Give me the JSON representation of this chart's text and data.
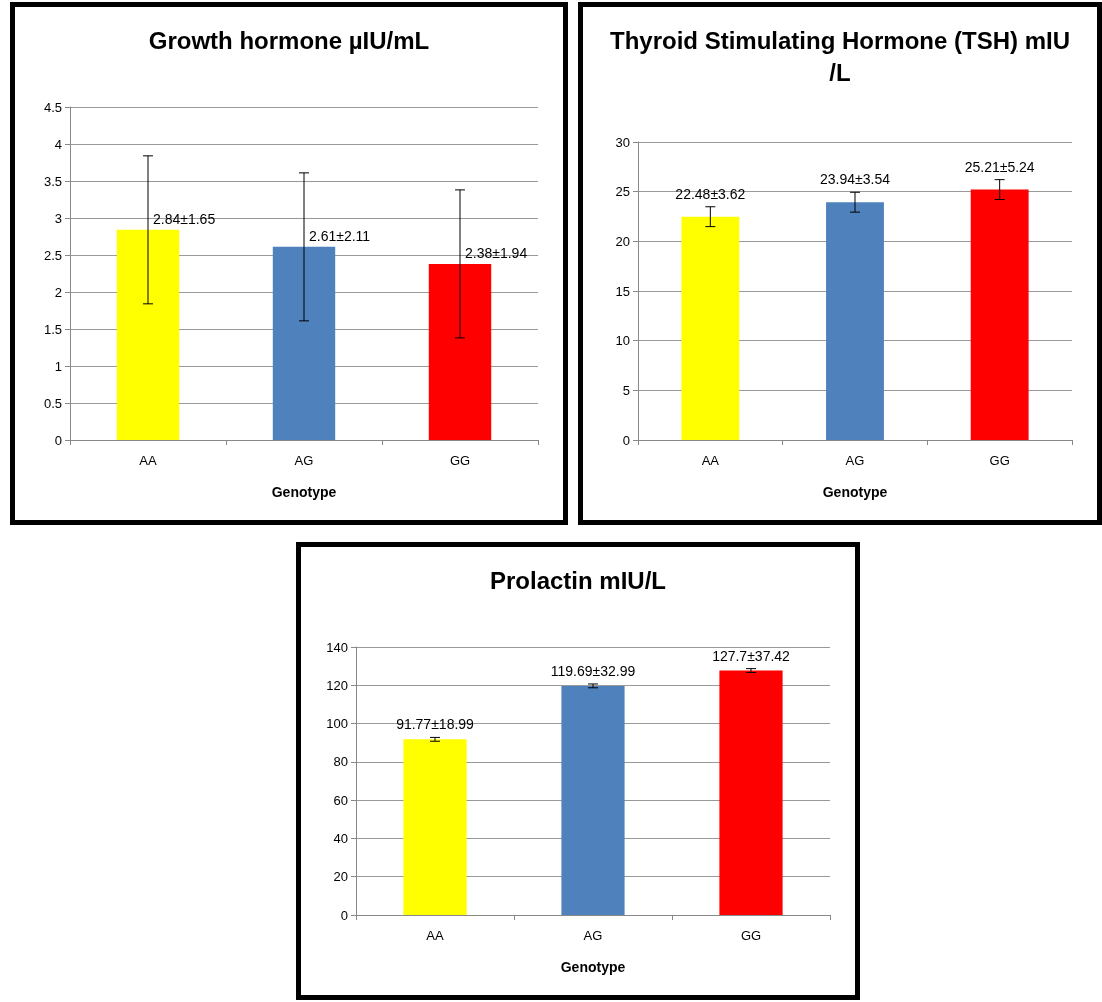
{
  "chart_data": [
    {
      "type": "bar",
      "title": "Growth hormone µIU/mL",
      "xlabel": "Genotype",
      "categories": [
        "AA",
        "AG",
        "GG"
      ],
      "values": [
        2.84,
        2.61,
        2.38
      ],
      "colors": [
        "#ffff00",
        "#4f81bd",
        "#ff0000"
      ],
      "errors": [
        1.0,
        1.0,
        1.0
      ],
      "value_labels": [
        "2.84±1.65",
        "2.61±2.11",
        "2.38±1.94"
      ],
      "ylim": [
        0,
        4.5
      ],
      "yticks": [
        0,
        0.5,
        1,
        1.5,
        2,
        2.5,
        3,
        3.5,
        4,
        4.5
      ],
      "grid": "y"
    },
    {
      "type": "bar",
      "title": "Thyroid Stimulating Hormone (TSH) mIU/L",
      "xlabel": "Genotype",
      "categories": [
        "AA",
        "AG",
        "GG"
      ],
      "values": [
        22.48,
        23.94,
        25.21
      ],
      "colors": [
        "#ffff00",
        "#4f81bd",
        "#ff0000"
      ],
      "errors": [
        1.0,
        1.0,
        1.0
      ],
      "value_labels": [
        "22.48±3.62",
        "23.94±3.54",
        "25.21±5.24"
      ],
      "ylim": [
        0,
        30
      ],
      "yticks": [
        0,
        5,
        10,
        15,
        20,
        25,
        30
      ],
      "grid": "y"
    },
    {
      "type": "bar",
      "title": "Prolactin mIU/L",
      "xlabel": "Genotype",
      "categories": [
        "AA",
        "AG",
        "GG"
      ],
      "values": [
        91.77,
        119.69,
        127.7
      ],
      "colors": [
        "#ffff00",
        "#4f81bd",
        "#ff0000"
      ],
      "errors": [
        1,
        1,
        1
      ],
      "value_labels": [
        "91.77±18.99",
        "119.69±32.99",
        "127.7±37.42"
      ],
      "ylim": [
        0,
        140
      ],
      "yticks": [
        0,
        20,
        40,
        60,
        80,
        100,
        120,
        140
      ],
      "grid": "y"
    }
  ]
}
